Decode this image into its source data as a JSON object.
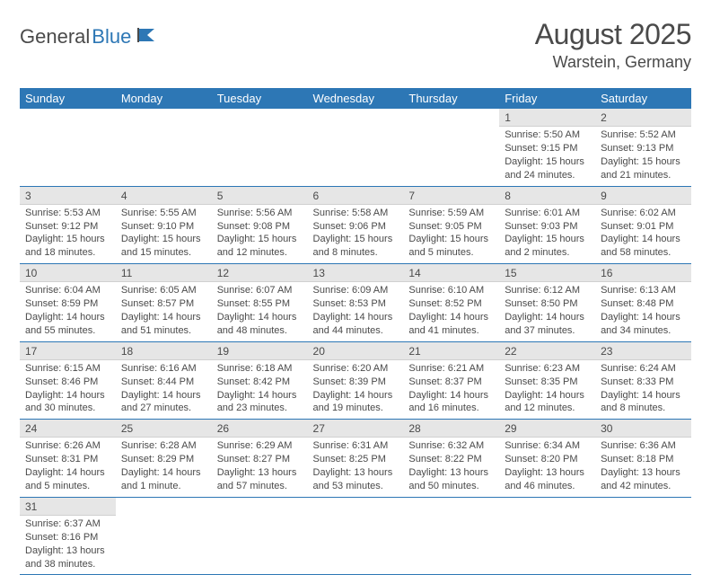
{
  "logo": {
    "text1": "General",
    "text2": "Blue"
  },
  "title": "August 2025",
  "location": "Warstein, Germany",
  "colors": {
    "header_bg": "#2d77b5",
    "header_text": "#ffffff",
    "daynum_bg": "#e6e6e6",
    "cell_border": "#2d77b5",
    "text": "#4a4a4a"
  },
  "dayHeaders": [
    "Sunday",
    "Monday",
    "Tuesday",
    "Wednesday",
    "Thursday",
    "Friday",
    "Saturday"
  ],
  "weeks": [
    [
      {
        "empty": true
      },
      {
        "empty": true
      },
      {
        "empty": true
      },
      {
        "empty": true
      },
      {
        "empty": true
      },
      {
        "day": "1",
        "sunrise": "Sunrise: 5:50 AM",
        "sunset": "Sunset: 9:15 PM",
        "daylight": "Daylight: 15 hours and 24 minutes."
      },
      {
        "day": "2",
        "sunrise": "Sunrise: 5:52 AM",
        "sunset": "Sunset: 9:13 PM",
        "daylight": "Daylight: 15 hours and 21 minutes."
      }
    ],
    [
      {
        "day": "3",
        "sunrise": "Sunrise: 5:53 AM",
        "sunset": "Sunset: 9:12 PM",
        "daylight": "Daylight: 15 hours and 18 minutes."
      },
      {
        "day": "4",
        "sunrise": "Sunrise: 5:55 AM",
        "sunset": "Sunset: 9:10 PM",
        "daylight": "Daylight: 15 hours and 15 minutes."
      },
      {
        "day": "5",
        "sunrise": "Sunrise: 5:56 AM",
        "sunset": "Sunset: 9:08 PM",
        "daylight": "Daylight: 15 hours and 12 minutes."
      },
      {
        "day": "6",
        "sunrise": "Sunrise: 5:58 AM",
        "sunset": "Sunset: 9:06 PM",
        "daylight": "Daylight: 15 hours and 8 minutes."
      },
      {
        "day": "7",
        "sunrise": "Sunrise: 5:59 AM",
        "sunset": "Sunset: 9:05 PM",
        "daylight": "Daylight: 15 hours and 5 minutes."
      },
      {
        "day": "8",
        "sunrise": "Sunrise: 6:01 AM",
        "sunset": "Sunset: 9:03 PM",
        "daylight": "Daylight: 15 hours and 2 minutes."
      },
      {
        "day": "9",
        "sunrise": "Sunrise: 6:02 AM",
        "sunset": "Sunset: 9:01 PM",
        "daylight": "Daylight: 14 hours and 58 minutes."
      }
    ],
    [
      {
        "day": "10",
        "sunrise": "Sunrise: 6:04 AM",
        "sunset": "Sunset: 8:59 PM",
        "daylight": "Daylight: 14 hours and 55 minutes."
      },
      {
        "day": "11",
        "sunrise": "Sunrise: 6:05 AM",
        "sunset": "Sunset: 8:57 PM",
        "daylight": "Daylight: 14 hours and 51 minutes."
      },
      {
        "day": "12",
        "sunrise": "Sunrise: 6:07 AM",
        "sunset": "Sunset: 8:55 PM",
        "daylight": "Daylight: 14 hours and 48 minutes."
      },
      {
        "day": "13",
        "sunrise": "Sunrise: 6:09 AM",
        "sunset": "Sunset: 8:53 PM",
        "daylight": "Daylight: 14 hours and 44 minutes."
      },
      {
        "day": "14",
        "sunrise": "Sunrise: 6:10 AM",
        "sunset": "Sunset: 8:52 PM",
        "daylight": "Daylight: 14 hours and 41 minutes."
      },
      {
        "day": "15",
        "sunrise": "Sunrise: 6:12 AM",
        "sunset": "Sunset: 8:50 PM",
        "daylight": "Daylight: 14 hours and 37 minutes."
      },
      {
        "day": "16",
        "sunrise": "Sunrise: 6:13 AM",
        "sunset": "Sunset: 8:48 PM",
        "daylight": "Daylight: 14 hours and 34 minutes."
      }
    ],
    [
      {
        "day": "17",
        "sunrise": "Sunrise: 6:15 AM",
        "sunset": "Sunset: 8:46 PM",
        "daylight": "Daylight: 14 hours and 30 minutes."
      },
      {
        "day": "18",
        "sunrise": "Sunrise: 6:16 AM",
        "sunset": "Sunset: 8:44 PM",
        "daylight": "Daylight: 14 hours and 27 minutes."
      },
      {
        "day": "19",
        "sunrise": "Sunrise: 6:18 AM",
        "sunset": "Sunset: 8:42 PM",
        "daylight": "Daylight: 14 hours and 23 minutes."
      },
      {
        "day": "20",
        "sunrise": "Sunrise: 6:20 AM",
        "sunset": "Sunset: 8:39 PM",
        "daylight": "Daylight: 14 hours and 19 minutes."
      },
      {
        "day": "21",
        "sunrise": "Sunrise: 6:21 AM",
        "sunset": "Sunset: 8:37 PM",
        "daylight": "Daylight: 14 hours and 16 minutes."
      },
      {
        "day": "22",
        "sunrise": "Sunrise: 6:23 AM",
        "sunset": "Sunset: 8:35 PM",
        "daylight": "Daylight: 14 hours and 12 minutes."
      },
      {
        "day": "23",
        "sunrise": "Sunrise: 6:24 AM",
        "sunset": "Sunset: 8:33 PM",
        "daylight": "Daylight: 14 hours and 8 minutes."
      }
    ],
    [
      {
        "day": "24",
        "sunrise": "Sunrise: 6:26 AM",
        "sunset": "Sunset: 8:31 PM",
        "daylight": "Daylight: 14 hours and 5 minutes."
      },
      {
        "day": "25",
        "sunrise": "Sunrise: 6:28 AM",
        "sunset": "Sunset: 8:29 PM",
        "daylight": "Daylight: 14 hours and 1 minute."
      },
      {
        "day": "26",
        "sunrise": "Sunrise: 6:29 AM",
        "sunset": "Sunset: 8:27 PM",
        "daylight": "Daylight: 13 hours and 57 minutes."
      },
      {
        "day": "27",
        "sunrise": "Sunrise: 6:31 AM",
        "sunset": "Sunset: 8:25 PM",
        "daylight": "Daylight: 13 hours and 53 minutes."
      },
      {
        "day": "28",
        "sunrise": "Sunrise: 6:32 AM",
        "sunset": "Sunset: 8:22 PM",
        "daylight": "Daylight: 13 hours and 50 minutes."
      },
      {
        "day": "29",
        "sunrise": "Sunrise: 6:34 AM",
        "sunset": "Sunset: 8:20 PM",
        "daylight": "Daylight: 13 hours and 46 minutes."
      },
      {
        "day": "30",
        "sunrise": "Sunrise: 6:36 AM",
        "sunset": "Sunset: 8:18 PM",
        "daylight": "Daylight: 13 hours and 42 minutes."
      }
    ],
    [
      {
        "day": "31",
        "sunrise": "Sunrise: 6:37 AM",
        "sunset": "Sunset: 8:16 PM",
        "daylight": "Daylight: 13 hours and 38 minutes."
      },
      {
        "empty": true
      },
      {
        "empty": true
      },
      {
        "empty": true
      },
      {
        "empty": true
      },
      {
        "empty": true
      },
      {
        "empty": true
      }
    ]
  ]
}
